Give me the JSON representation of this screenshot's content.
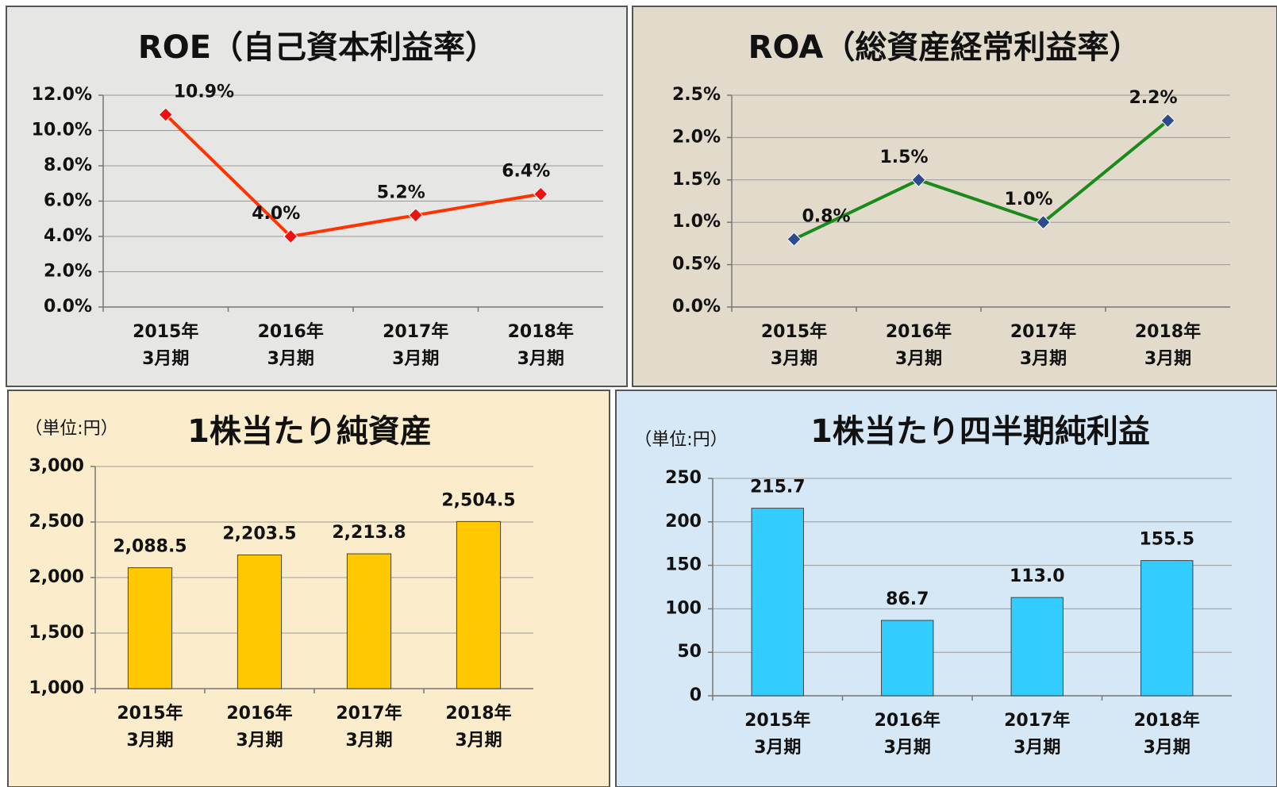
{
  "chart_data": [
    {
      "type": "line",
      "title": "ROE（自己資本利益率）",
      "categories": [
        "2015年\n3月期",
        "2016年\n3月期",
        "2017年\n3月期",
        "2018年\n3月期"
      ],
      "values": [
        10.9,
        4.0,
        5.2,
        6.4
      ],
      "value_labels": [
        "10.9%",
        "4.0%",
        "5.2%",
        "6.4%"
      ],
      "color": "#ff3300",
      "marker_color": "#ee1111",
      "ylim": [
        0,
        12
      ],
      "yticks": [
        {
          "value": 0,
          "label": "0.0%"
        },
        {
          "value": 2,
          "label": "2.0%"
        },
        {
          "value": 4,
          "label": "4.0%"
        },
        {
          "value": 6,
          "label": "6.0%"
        },
        {
          "value": 8,
          "label": "8.0%"
        },
        {
          "value": 10,
          "label": "10.0%"
        },
        {
          "value": 12,
          "label": "12.0%"
        }
      ],
      "grid": true
    },
    {
      "type": "line",
      "title": "ROA（総資産経常利益率）",
      "categories": [
        "2015年\n3月期",
        "2016年\n3月期",
        "2017年\n3月期",
        "2018年\n3月期"
      ],
      "values": [
        0.8,
        1.5,
        1.0,
        2.2
      ],
      "value_labels": [
        "0.8%",
        "1.5%",
        "1.0%",
        "2.2%"
      ],
      "color": "#1a8a1a",
      "marker_color": "#2e4a8a",
      "ylim": [
        0,
        2.5
      ],
      "yticks": [
        {
          "value": 0,
          "label": "0.0%"
        },
        {
          "value": 0.5,
          "label": "0.5%"
        },
        {
          "value": 1,
          "label": "1.0%"
        },
        {
          "value": 1.5,
          "label": "1.5%"
        },
        {
          "value": 2,
          "label": "2.0%"
        },
        {
          "value": 2.5,
          "label": "2.5%"
        }
      ],
      "grid": true
    },
    {
      "type": "bar",
      "title": "1株当たり純資産",
      "unit": "（単位:円）",
      "categories": [
        "2015年\n3月期",
        "2016年\n3月期",
        "2017年\n3月期",
        "2018年\n3月期"
      ],
      "values": [
        2088.5,
        2203.5,
        2213.8,
        2504.5
      ],
      "value_labels": [
        "2,088.5",
        "2,203.5",
        "2,213.8",
        "2,504.5"
      ],
      "color": "#ffc800",
      "ylim": [
        1000,
        3000
      ],
      "yticks": [
        {
          "value": 1000,
          "label": "1,000"
        },
        {
          "value": 1500,
          "label": "1,500"
        },
        {
          "value": 2000,
          "label": "2,000"
        },
        {
          "value": 2500,
          "label": "2,500"
        },
        {
          "value": 3000,
          "label": "3,000"
        }
      ],
      "grid": true
    },
    {
      "type": "bar",
      "title": "1株当たり四半期純利益",
      "unit": "（単位:円）",
      "categories": [
        "2015年\n3月期",
        "2016年\n3月期",
        "2017年\n3月期",
        "2018年\n3月期"
      ],
      "values": [
        215.7,
        86.7,
        113.0,
        155.5
      ],
      "value_labels": [
        "215.7",
        "86.7",
        "113.0",
        "155.5"
      ],
      "color": "#33ccff",
      "ylim": [
        0,
        250
      ],
      "yticks": [
        0,
        50,
        100,
        150,
        200,
        250
      ],
      "grid": true
    }
  ]
}
